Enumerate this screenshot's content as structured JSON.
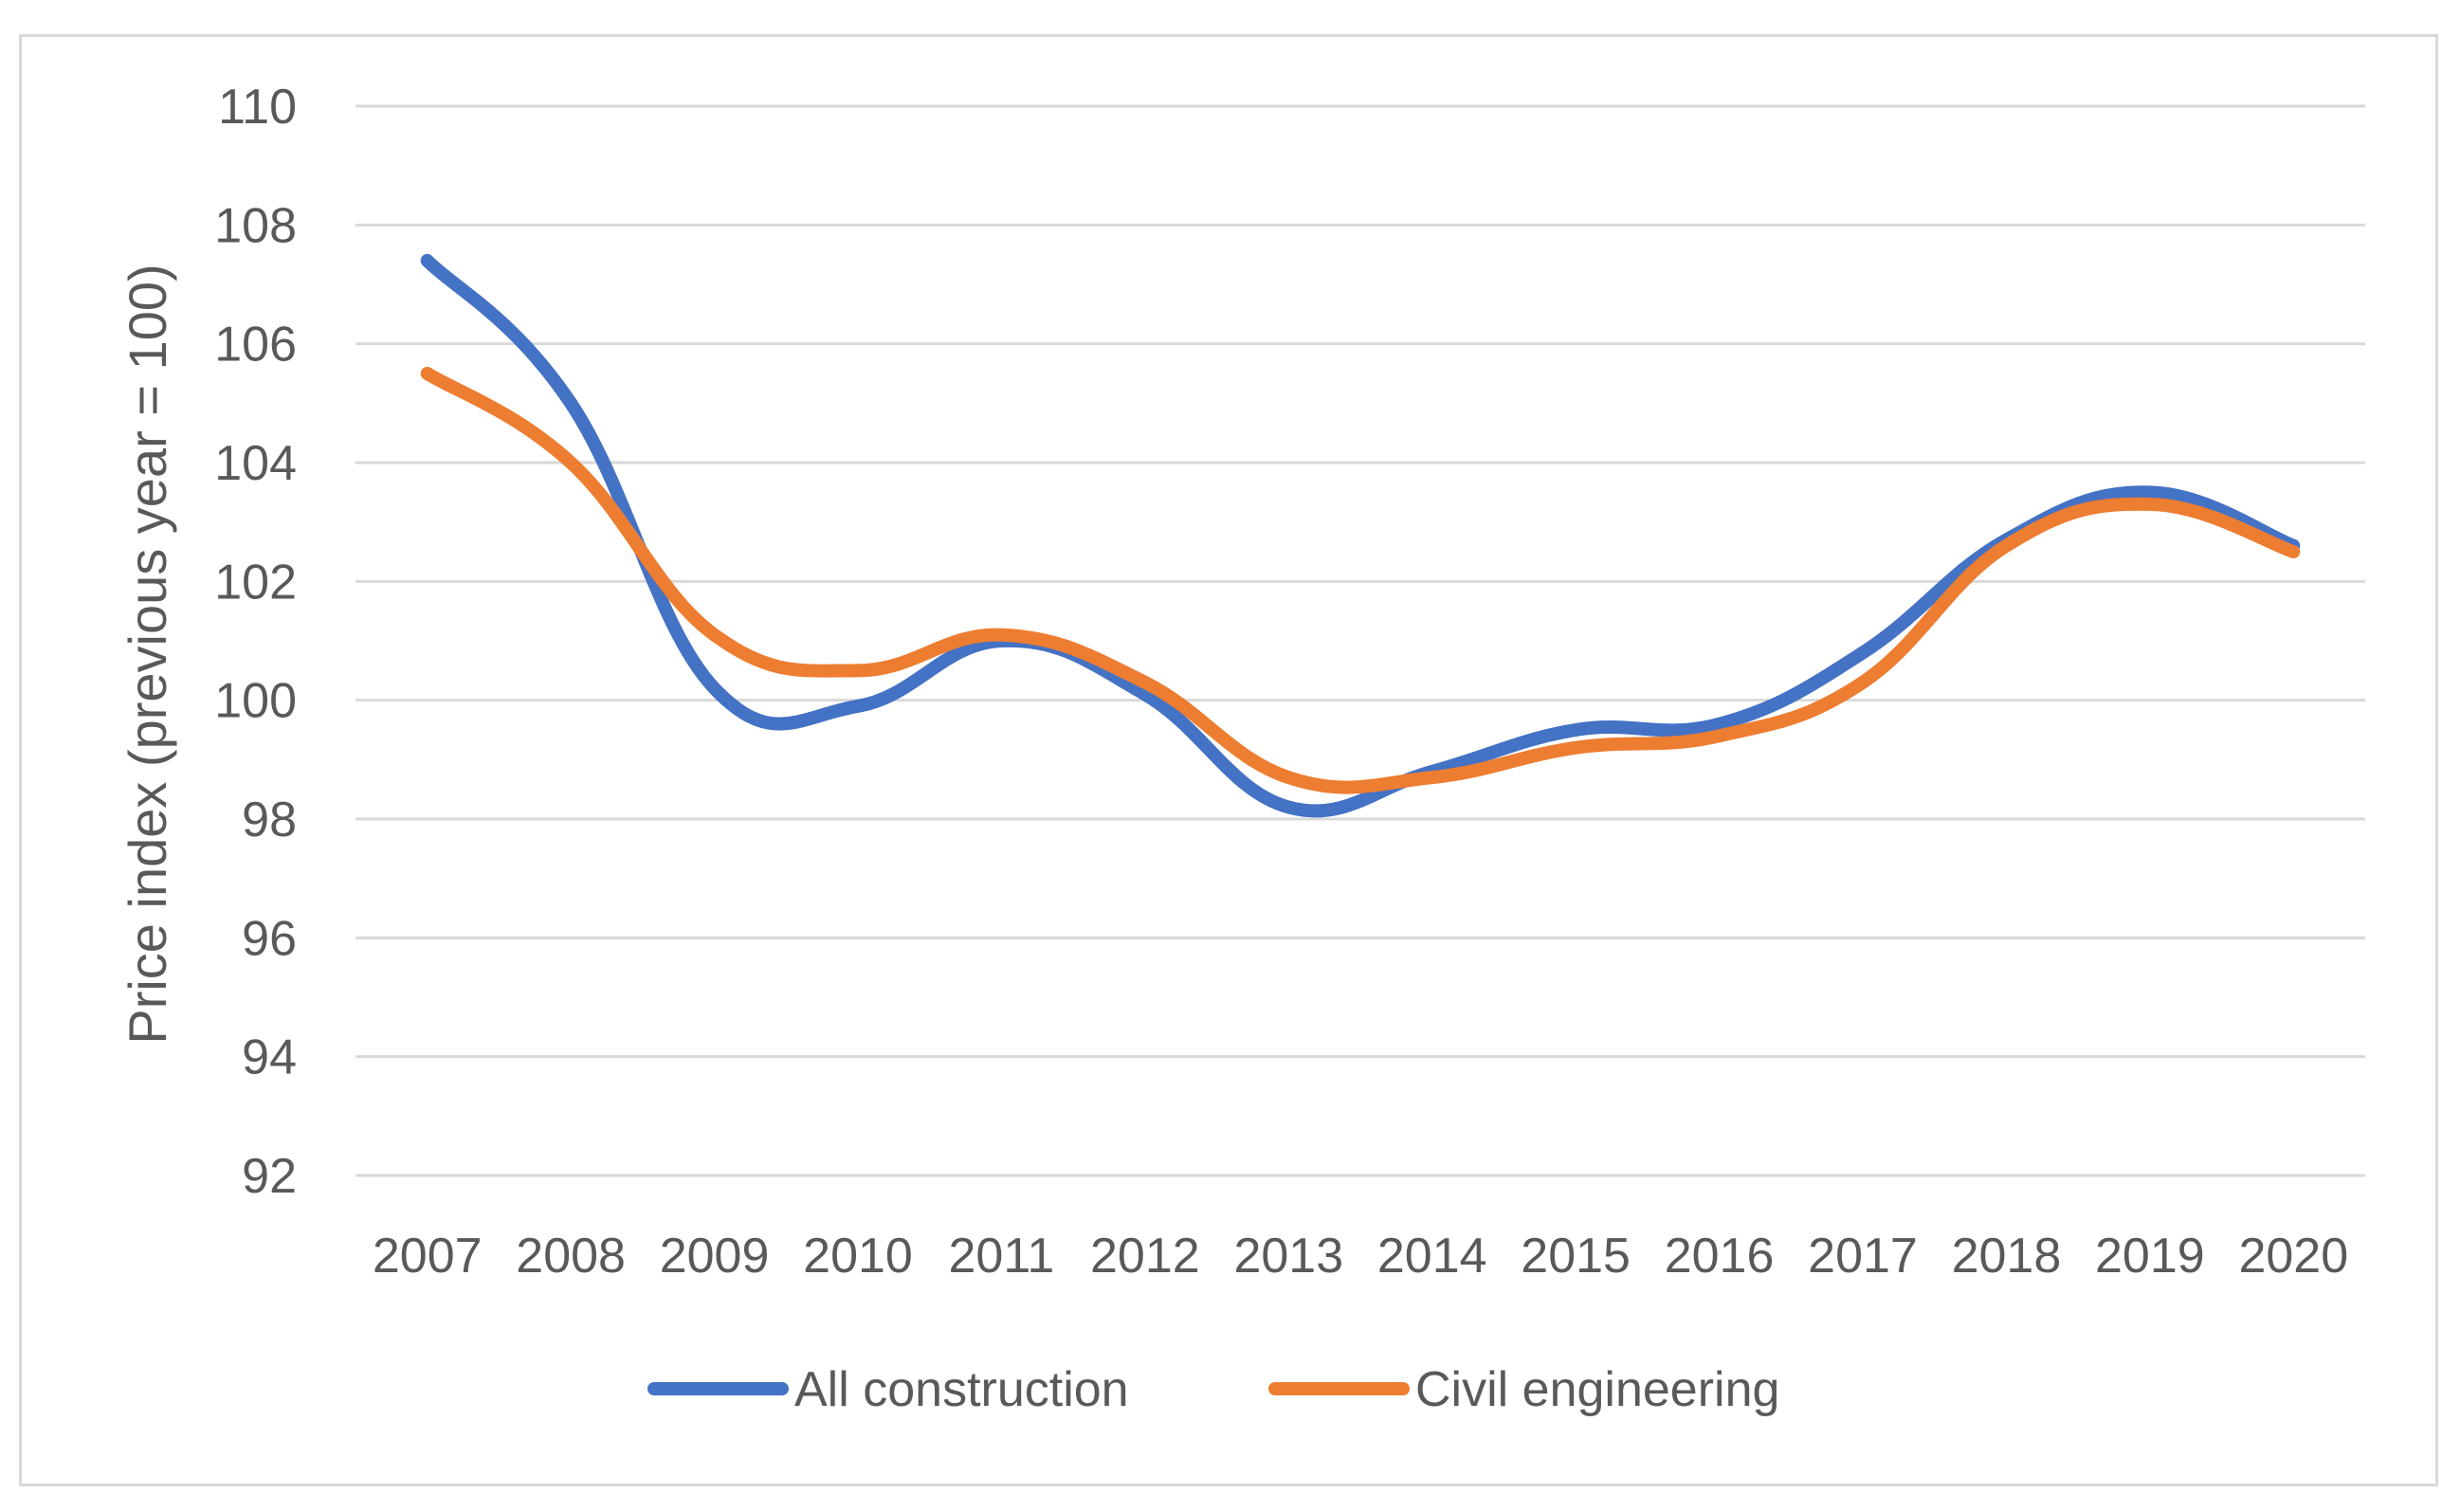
{
  "chart_data": {
    "type": "line",
    "title": "",
    "xlabel": "",
    "ylabel": "Price index (previous year = 100)",
    "categories": [
      "2007",
      "2008",
      "2009",
      "2010",
      "2011",
      "2012",
      "2013",
      "2014",
      "2015",
      "2016",
      "2017",
      "2018",
      "2019",
      "2020"
    ],
    "ylim": [
      92,
      110
    ],
    "yticks": [
      92,
      94,
      96,
      98,
      100,
      102,
      104,
      106,
      108,
      110
    ],
    "ytick_labels": [
      "92",
      "94",
      "96",
      "98",
      "100",
      "102",
      "104",
      "106",
      "108",
      "110"
    ],
    "grid": true,
    "legend_position": "bottom",
    "series": [
      {
        "name": "All construction",
        "color": "#4472c4",
        "values": [
          107.4,
          105.0,
          100.2,
          99.9,
          101.0,
          100.1,
          98.2,
          98.8,
          99.5,
          99.6,
          100.8,
          102.7,
          103.5,
          102.6
        ]
      },
      {
        "name": "Civil engineering",
        "color": "#ed7d31",
        "values": [
          105.5,
          104.0,
          101.1,
          100.5,
          101.1,
          100.3,
          98.7,
          98.7,
          99.2,
          99.4,
          100.3,
          102.6,
          103.3,
          102.5
        ]
      }
    ]
  }
}
